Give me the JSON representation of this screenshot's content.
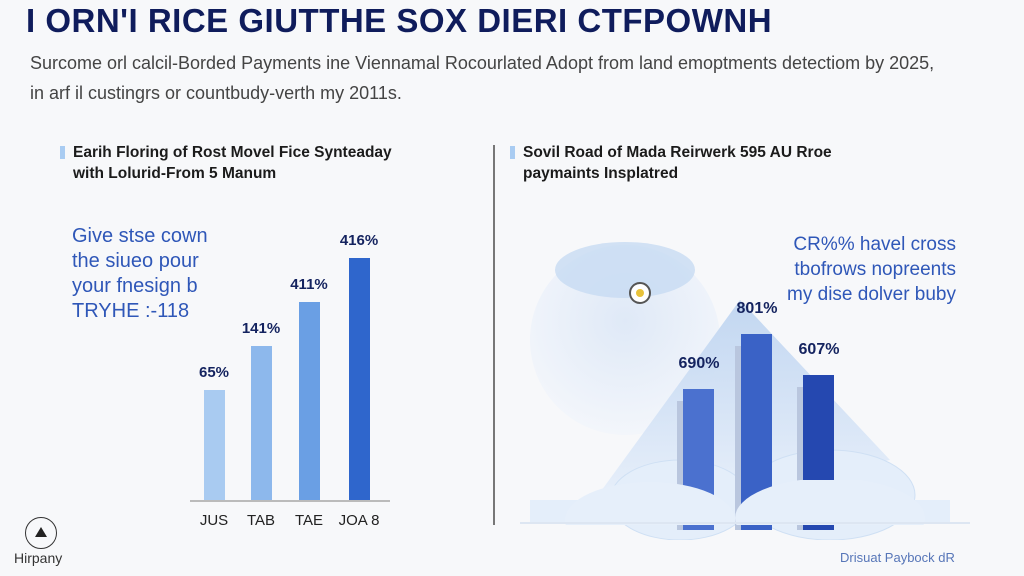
{
  "header": {
    "title": "I ORN'I RICE GIUTTHE SOX DIERI CTFPOWNH",
    "subtitle_line1": "Surcome orl calcil-Borded Payments ine Viennamal Rocourlated Adopt from land emoptments detectiom by 2025,",
    "subtitle_line2": "in arf il custingrs or countbudy-verth my 2011s."
  },
  "left_panel": {
    "heading_line1": "Earih Floring of Rost Movel Fice Synteaday",
    "heading_line2": "with Lolurid-From 5 Manum",
    "callout": [
      "Give stse cown",
      "the siueo pour",
      "your fnesign b",
      "TRYHE :-118"
    ]
  },
  "right_panel": {
    "heading_line1": "Sovil Road of Mada Reirwerk 595 AU Rroe",
    "heading_line2": "paymaints Insplatred",
    "callout": [
      "CR%% havel cross",
      "tbofrows nopreents",
      "my dise dolver buby"
    ]
  },
  "footer": {
    "logo_text": "Hirpany",
    "right_text": "Drisuat Paybock dR"
  },
  "colors": {
    "title": "#0f1c5c",
    "accent": "#2f57b8",
    "bar_light": "#a7c8f0",
    "bar_dark": "#2f62c8"
  },
  "chart_data": [
    {
      "type": "bar",
      "title": "Earih Floring of Rost Movel Fice Synteaday with Lolurid-From 5 Manum",
      "categories": [
        "JUS",
        "TAB",
        "TAE",
        "JOA 8"
      ],
      "values": [
        65,
        141,
        411,
        416
      ],
      "value_labels": [
        "65%",
        "141%",
        "411%",
        "416%"
      ],
      "xlabel": "",
      "ylabel": "",
      "grid": false
    },
    {
      "type": "bar",
      "title": "Sovil Road of Mada Reirwerk 595 AU Rroe paymaints Insplatred",
      "categories": [
        "",
        "",
        ""
      ],
      "values": [
        690,
        801,
        607
      ],
      "value_labels": [
        "690%",
        "801%",
        "607%"
      ],
      "xlabel": "",
      "ylabel": "",
      "grid": false
    }
  ]
}
